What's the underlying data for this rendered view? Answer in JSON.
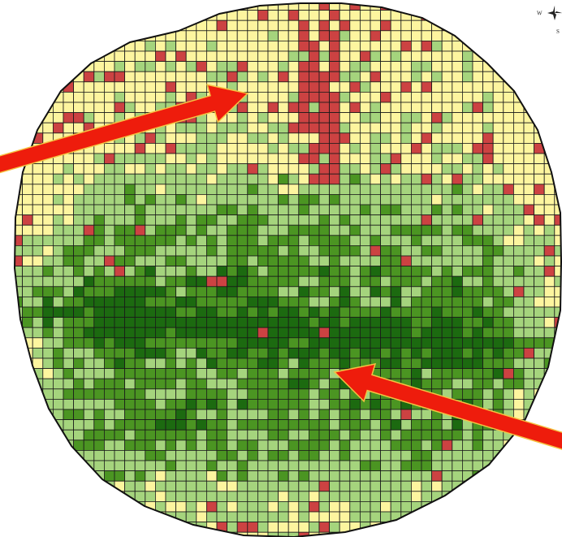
{
  "map": {
    "type": "grid-classification",
    "legend_visible": false,
    "classes": [
      {
        "id": "dark-green",
        "color": "#1c6a10"
      },
      {
        "id": "medium-green",
        "color": "#4b9522"
      },
      {
        "id": "light-green",
        "color": "#a5d47d"
      },
      {
        "id": "pale-yellow",
        "color": "#fdf59f"
      },
      {
        "id": "red",
        "color": "#cc4242"
      }
    ],
    "grid_line_color": "#1a1a1a",
    "boundary_color": "#111111",
    "arrow_fill_color": "#ee1c0c",
    "arrow_outline_color": "#f5c242",
    "background_color": "#ffffff"
  },
  "compass": {
    "icon": "compass-rose-icon",
    "west_label": "W",
    "south_label": "S"
  }
}
